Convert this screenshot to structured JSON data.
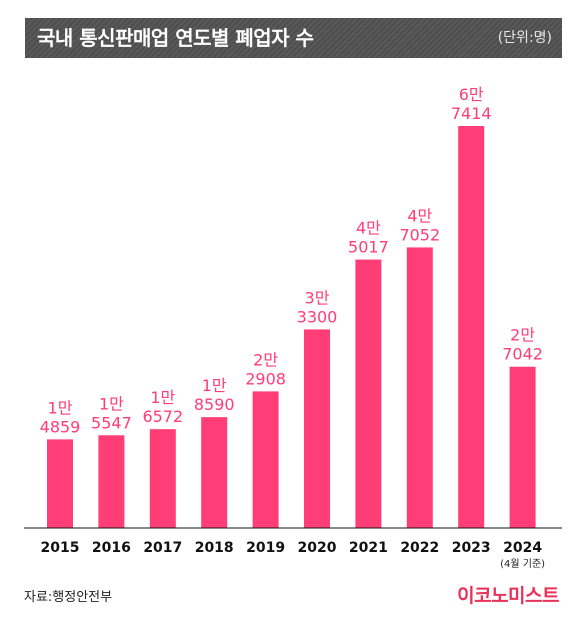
{
  "header": {
    "title": "국내 통신판매업 연도별 폐업자 수",
    "unit": "(단위:명)"
  },
  "footer": {
    "source": "자료:행정안전부",
    "brand": "이코노미스트"
  },
  "colors": {
    "bar": "#ff3d77",
    "label": "#ff3d77",
    "header_bg": "#555555"
  },
  "chart_data": {
    "type": "bar",
    "categories": [
      "2015",
      "2016",
      "2017",
      "2018",
      "2019",
      "2020",
      "2021",
      "2022",
      "2023",
      "2024"
    ],
    "category_notes": [
      "",
      "",
      "",
      "",
      "",
      "",
      "",
      "",
      "",
      "(4월 기준)"
    ],
    "values": [
      14859,
      15547,
      16572,
      18590,
      22908,
      33300,
      45017,
      47052,
      67414,
      27042
    ],
    "value_labels": [
      [
        "1만",
        "4859"
      ],
      [
        "1만",
        "5547"
      ],
      [
        "1만",
        "6572"
      ],
      [
        "1만",
        "8590"
      ],
      [
        "2만",
        "2908"
      ],
      [
        "3만",
        "3300"
      ],
      [
        "4만",
        "5017"
      ],
      [
        "4만",
        "7052"
      ],
      [
        "6만",
        "7414"
      ],
      [
        "2만",
        "7042"
      ]
    ],
    "ylim": [
      0,
      67414
    ],
    "grid": false,
    "legend": "none"
  }
}
